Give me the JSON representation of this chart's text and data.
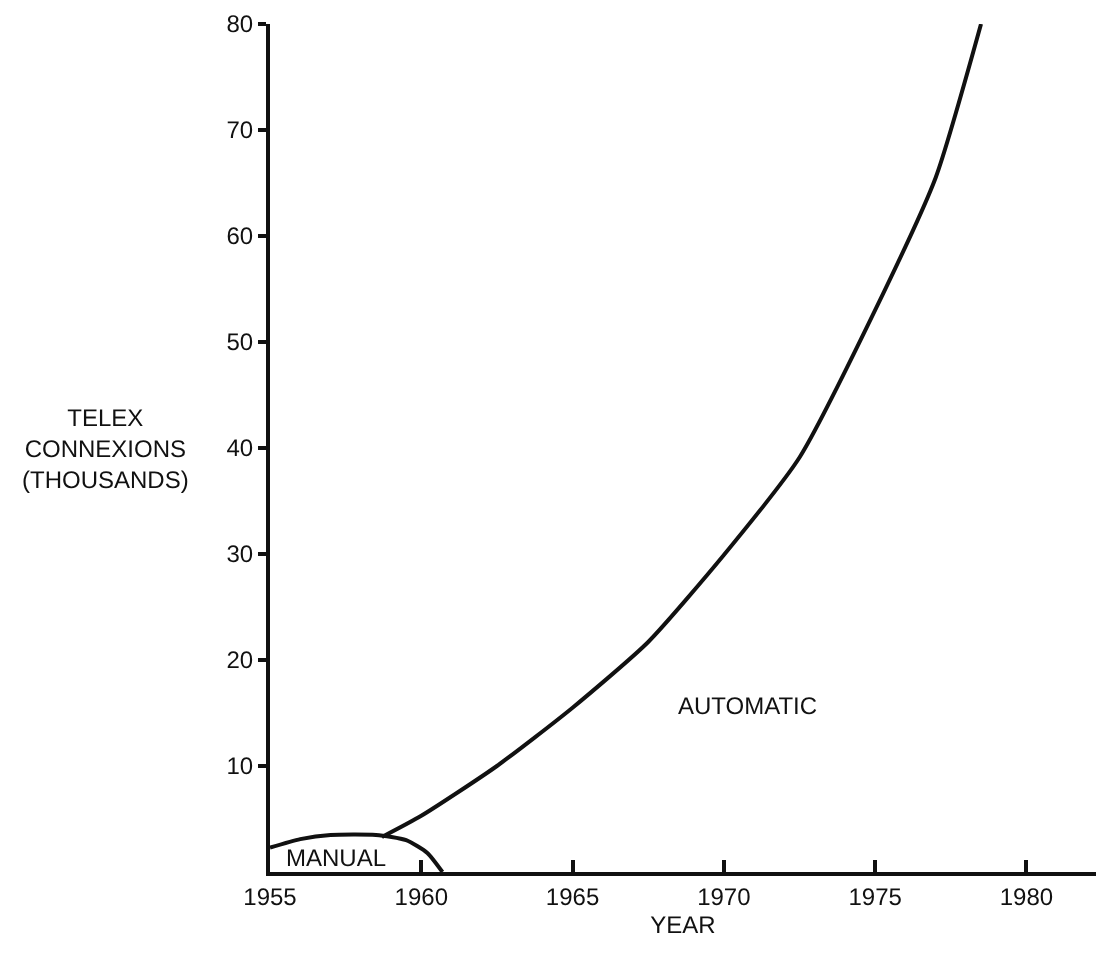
{
  "chart_data": {
    "type": "line",
    "xlabel": "YEAR",
    "ylabel": "TELEX\nCONNEXIONS\n(THOUSANDS)",
    "xlim": [
      1955,
      1982.3
    ],
    "ylim": [
      0,
      80
    ],
    "xticks": [
      1955,
      1960,
      1965,
      1970,
      1975,
      1980
    ],
    "yticks": [
      10,
      20,
      30,
      40,
      50,
      60,
      70,
      80
    ],
    "grid": false,
    "marker": "none",
    "line_style": "solid",
    "series": [
      {
        "name": "AUTOMATIC",
        "color": "#111111",
        "x": [
          1958.7,
          1960,
          1962.5,
          1965,
          1967.5,
          1970,
          1972.5,
          1975,
          1977,
          1978.5
        ],
        "values": [
          3.3,
          5.3,
          10,
          15.5,
          21.7,
          29.9,
          39.1,
          53,
          65.5,
          80
        ]
      },
      {
        "name": "MANUAL",
        "color": "#111111",
        "x": [
          1955,
          1956,
          1957,
          1958.5,
          1959.5,
          1960.2,
          1960.7
        ],
        "values": [
          2.3,
          3.1,
          3.5,
          3.5,
          3.0,
          1.8,
          0
        ]
      }
    ]
  }
}
